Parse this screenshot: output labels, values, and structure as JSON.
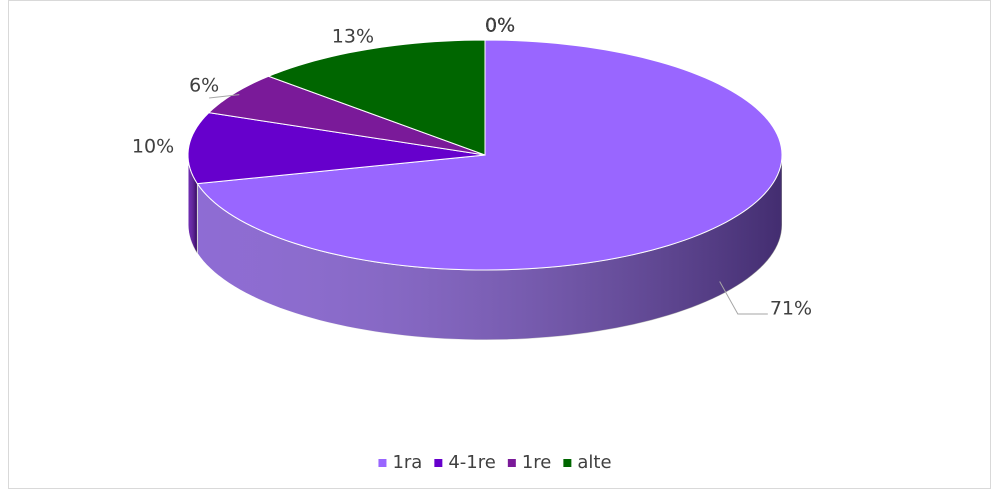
{
  "chart_data": {
    "type": "pie",
    "categories": [
      "1ra",
      "4-1re",
      "1re",
      "alte",
      null,
      null,
      null,
      null
    ],
    "values": [
      71,
      10,
      6,
      13,
      0,
      0,
      0,
      0
    ],
    "value_labels": [
      "71%",
      "10%",
      "6%",
      "13%",
      "0%",
      "0%",
      "0%",
      "0%"
    ],
    "colors": [
      "#9966ff",
      "#6600cc",
      "#7a1a99",
      "#006600",
      "#4d79c7",
      "#e07b39",
      "#a5a5a5",
      "#ffc000"
    ],
    "legend": "bottom"
  }
}
